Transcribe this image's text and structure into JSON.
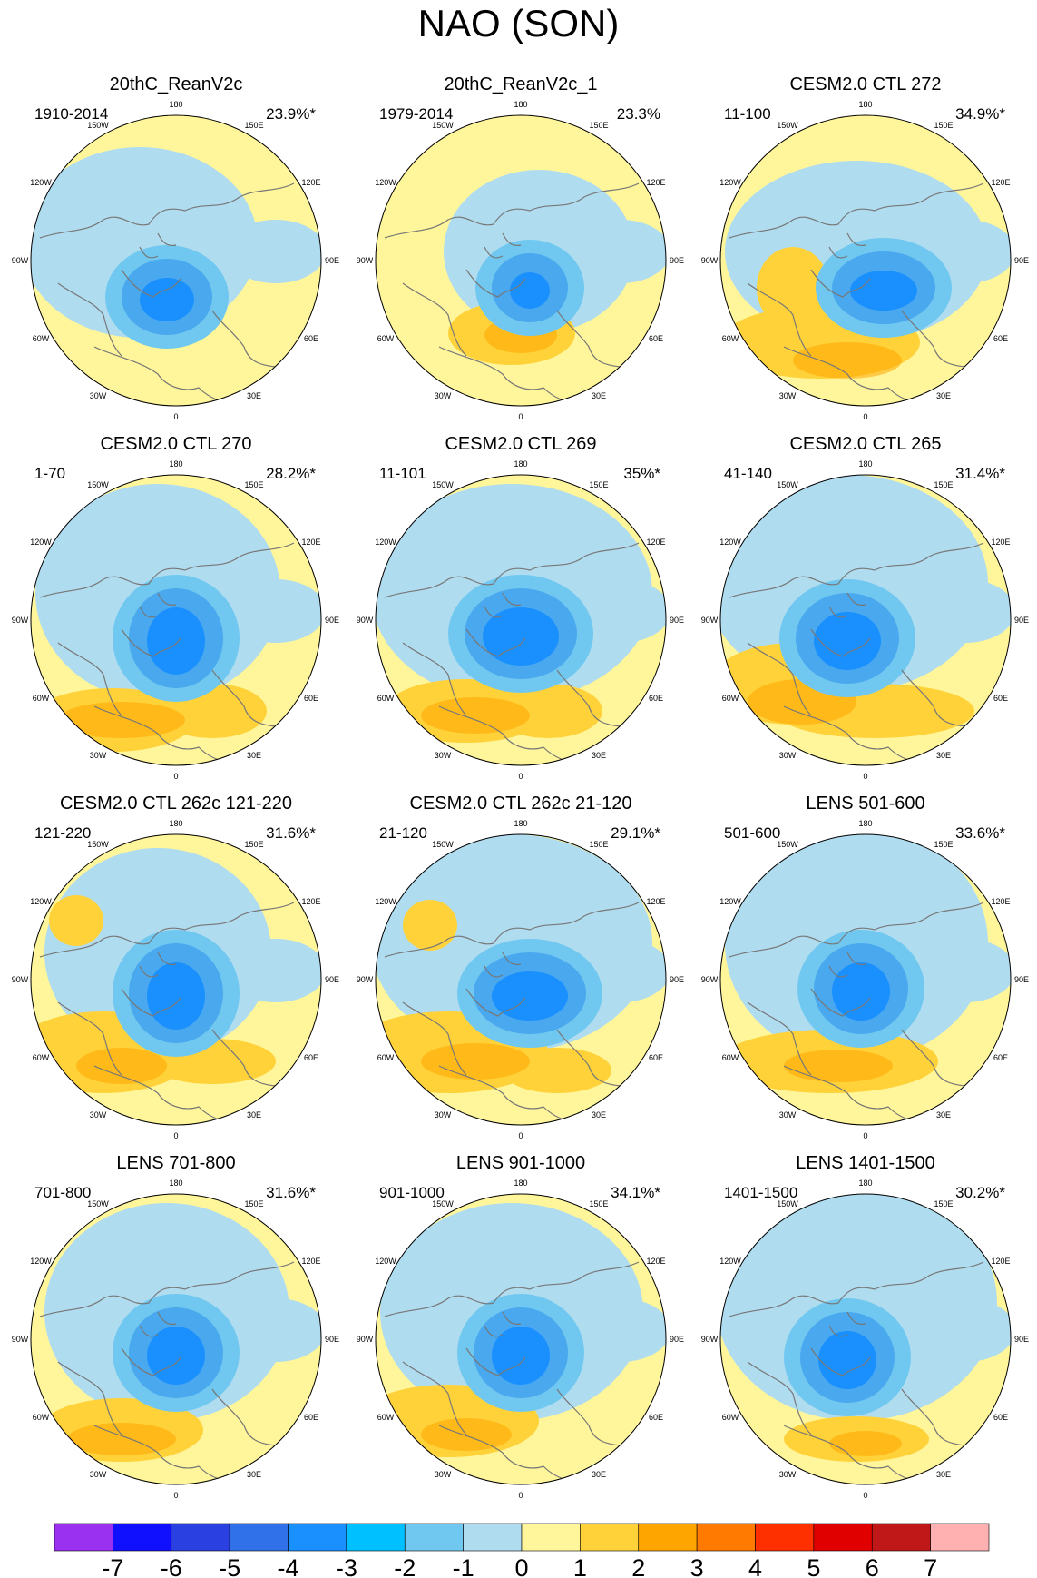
{
  "figure_title": "NAO (SON)",
  "panels": [
    {
      "title": "20thC_ReanV2c",
      "period": "1910-2014",
      "pct": "23.9%*"
    },
    {
      "title": "20thC_ReanV2c_1",
      "period": "1979-2014",
      "pct": "23.3%"
    },
    {
      "title": "CESM2.0 CTL 272",
      "period": "11-100",
      "pct": "34.9%*"
    },
    {
      "title": "CESM2.0 CTL 270",
      "period": "1-70",
      "pct": "28.2%*"
    },
    {
      "title": "CESM2.0 CTL 269",
      "period": "11-101",
      "pct": "35%*"
    },
    {
      "title": "CESM2.0 CTL 265",
      "period": "41-140",
      "pct": "31.4%*"
    },
    {
      "title": "CESM2.0 CTL 262c 121-220",
      "period": "121-220",
      "pct": "31.6%*"
    },
    {
      "title": "CESM2.0 CTL 262c 21-120",
      "period": "21-120",
      "pct": "29.1%*"
    },
    {
      "title": "LENS 501-600",
      "period": "501-600",
      "pct": "33.6%*"
    },
    {
      "title": "LENS 701-800",
      "period": "701-800",
      "pct": "31.6%*"
    },
    {
      "title": "LENS 901-1000",
      "period": "901-1000",
      "pct": "34.1%*"
    },
    {
      "title": "LENS 1401-1500",
      "period": "1401-1500",
      "pct": "30.2%*"
    }
  ],
  "longitude_labels": [
    "180",
    "150E",
    "120E",
    "90E",
    "60E",
    "30E",
    "0",
    "30W",
    "60W",
    "90W",
    "120W",
    "150W"
  ],
  "colorbar": {
    "labels": [
      "-7",
      "-6",
      "-5",
      "-4",
      "-3",
      "-2",
      "-1",
      "0",
      "1",
      "2",
      "3",
      "4",
      "5",
      "6",
      "7"
    ],
    "colors": [
      "#9a30f0",
      "#1010ff",
      "#2a40e0",
      "#3070e8",
      "#1a90ff",
      "#00c0ff",
      "#70c8f0",
      "#b0dcf0",
      "#fff59a",
      "#ffd23a",
      "#ffa500",
      "#ff7a00",
      "#ff3000",
      "#e00000",
      "#c01818",
      "#ffb0b0"
    ]
  },
  "colors": {
    "land_line": "#777777",
    "neg1": "#b0dcf0",
    "neg2": "#70c8f0",
    "neg3": "#4aa8ee",
    "neg4": "#1a90ff",
    "pos1": "#fff59a",
    "pos2": "#ffd23a",
    "pos3": "#ffa500"
  },
  "contour_levels": {
    "-4": "#1a90ff",
    "-3": "#4aa8ee",
    "-2": "#70c8f0",
    "-1": "#b0dcf0",
    "1": "#fff59a",
    "2": "#ffd23a",
    "3": "#ffa500"
  }
}
